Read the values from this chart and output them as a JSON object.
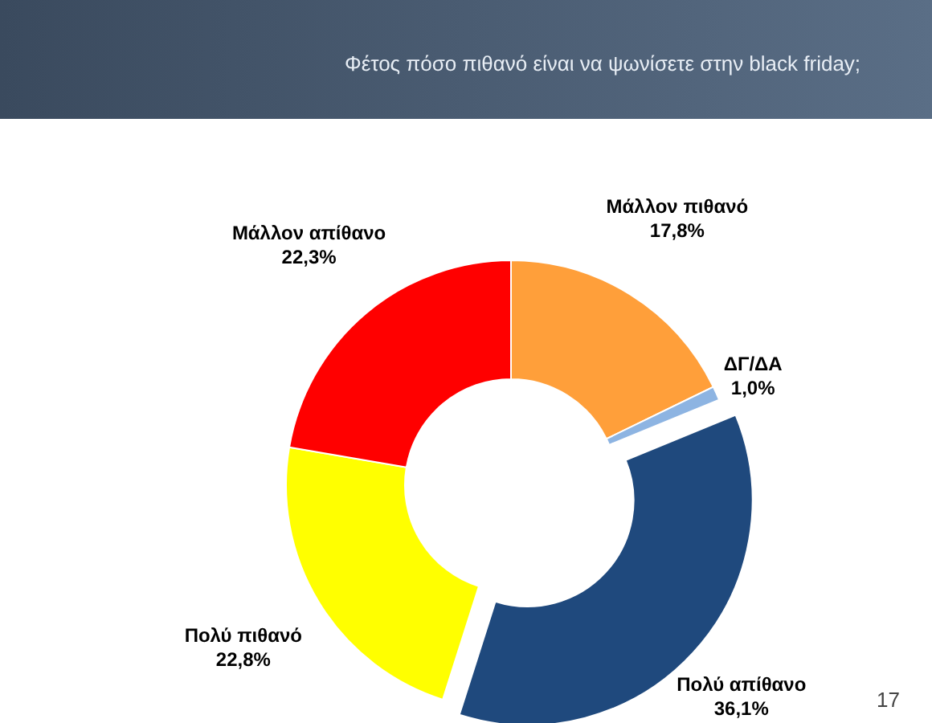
{
  "chart_data": {
    "type": "donut",
    "title": "Φέτος πόσο πιθανό είναι να ψωνίσετε στην black friday;",
    "categories": [
      "Μάλλον πιθανό",
      "ΔΓ/ΔΑ",
      "Πολύ απίθανο",
      "Πολύ πιθανό",
      "Μάλλον απίθανο"
    ],
    "values": [
      17.8,
      1.0,
      36.1,
      22.8,
      22.3
    ],
    "colors": [
      "#ff9f3a",
      "#8db4e2",
      "#1f497d",
      "#ffff00",
      "#ff0000"
    ],
    "value_labels": [
      "17,8%",
      "1,0%",
      "36,1%",
      "22,8%",
      "22,3%"
    ],
    "annotations": [
      "17"
    ]
  }
}
